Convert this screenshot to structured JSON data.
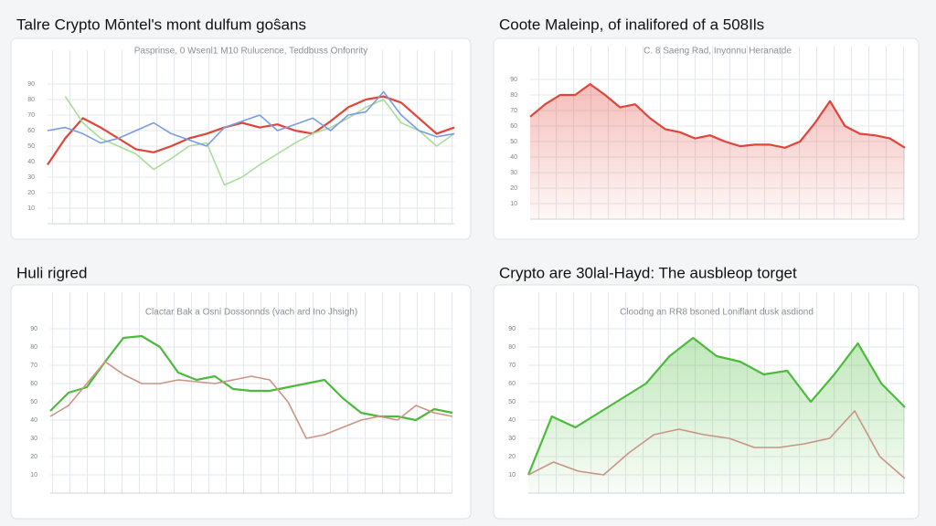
{
  "chart_data": [
    {
      "type": "line",
      "title": "Talre Crypto Mōntel's mont dulfum goŝans",
      "subtitle": "Pasprinse, 0 Wsenl1 M10 Rulucence, Teddbuss Onfonrity",
      "ylim": [
        0,
        100
      ],
      "yticks": [
        10,
        20,
        30,
        40,
        50,
        60,
        70,
        80,
        90
      ],
      "grid": true,
      "series": [
        {
          "name": "Red",
          "color": "#e0453a",
          "values": [
            38,
            55,
            68,
            62,
            55,
            48,
            46,
            50,
            55,
            58,
            62,
            65,
            62,
            64,
            60,
            58,
            66,
            75,
            80,
            82,
            78,
            68,
            58,
            62
          ]
        },
        {
          "name": "Green",
          "color": "#a9dc9c",
          "values": [
            null,
            82,
            65,
            55,
            50,
            45,
            35,
            42,
            50,
            52,
            25,
            30,
            38,
            45,
            52,
            58,
            62,
            68,
            75,
            80,
            65,
            60,
            50,
            58
          ]
        },
        {
          "name": "Blue",
          "color": "#7b9be0",
          "values": [
            60,
            62,
            58,
            52,
            55,
            60,
            65,
            58,
            54,
            50,
            62,
            66,
            70,
            60,
            64,
            68,
            60,
            70,
            72,
            85,
            70,
            60,
            56,
            58
          ]
        }
      ]
    },
    {
      "type": "line",
      "title": "Coote Maleinp, of inalifored of a 508Ils",
      "subtitle": "C. 8 Saeng Rad, Inyonnu Heranatde",
      "ylim": [
        0,
        100
      ],
      "yticks": [
        10,
        20,
        30,
        40,
        50,
        60,
        70,
        80,
        90
      ],
      "grid": true,
      "series": [
        {
          "name": "Red",
          "color": "#e0453a",
          "fill": true,
          "values": [
            66,
            74,
            80,
            80,
            87,
            80,
            72,
            74,
            65,
            58,
            56,
            52,
            54,
            50,
            47,
            48,
            48,
            46,
            50,
            62,
            76,
            60,
            55,
            54,
            52,
            46
          ]
        }
      ]
    },
    {
      "type": "line",
      "title": "Huli rigred",
      "subtitle": "Clactar Bak a Osni Dossonnds (vach ard Ino Jhsigh)",
      "ylim": [
        0,
        100
      ],
      "yticks": [
        10,
        20,
        30,
        40,
        50,
        60,
        70,
        80,
        90
      ],
      "grid": true,
      "series": [
        {
          "name": "Green",
          "color": "#4cbb3c",
          "values": [
            45,
            55,
            58,
            72,
            85,
            86,
            80,
            66,
            62,
            64,
            57,
            56,
            56,
            58,
            60,
            62,
            52,
            44,
            42,
            42,
            40,
            46,
            44
          ]
        },
        {
          "name": "Brown",
          "color": "#c99484",
          "values": [
            42,
            48,
            60,
            72,
            65,
            60,
            60,
            62,
            61,
            60,
            62,
            64,
            62,
            50,
            30,
            32,
            36,
            40,
            42,
            40,
            48,
            44,
            42
          ]
        }
      ]
    },
    {
      "type": "line",
      "title": "Crypto are 30lal-Hayd: The ausbleop torget",
      "subtitle": "Cloodng an RR8 bsoned Loniflant dusk asdiond",
      "ylim": [
        0,
        100
      ],
      "yticks": [
        10,
        20,
        30,
        40,
        50,
        60,
        70,
        80,
        90
      ],
      "grid": true,
      "series": [
        {
          "name": "Green",
          "color": "#4cbb3c",
          "fill": true,
          "values": [
            10,
            42,
            36,
            44,
            52,
            60,
            75,
            85,
            75,
            72,
            65,
            67,
            50,
            65,
            82,
            60,
            47
          ]
        },
        {
          "name": "Brown",
          "color": "#c99484",
          "values": [
            10,
            17,
            12,
            10,
            22,
            32,
            35,
            32,
            30,
            25,
            25,
            27,
            30,
            45,
            20,
            8
          ]
        }
      ]
    }
  ]
}
